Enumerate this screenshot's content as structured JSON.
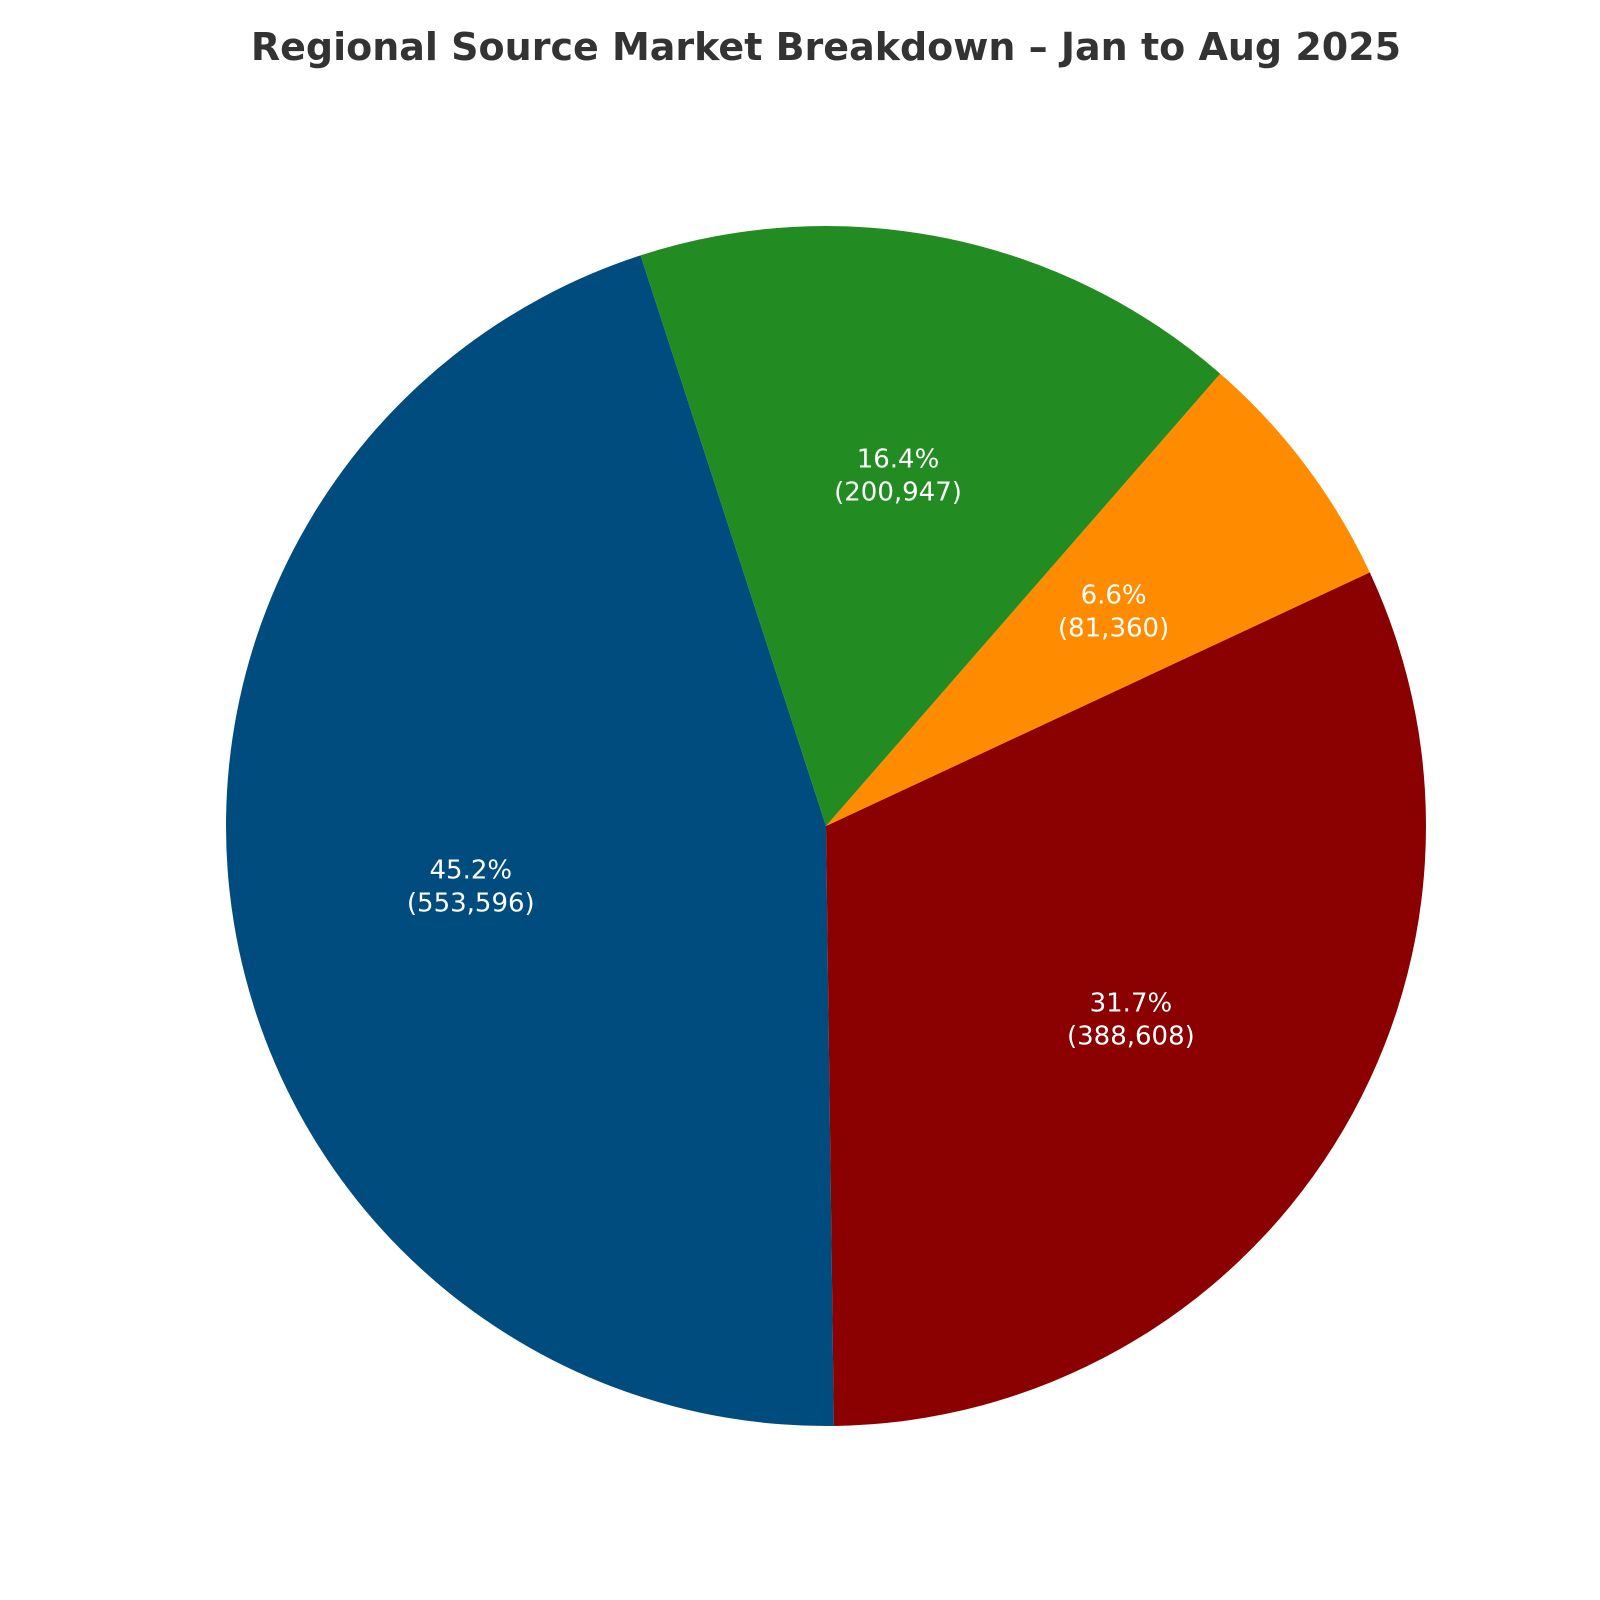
{
  "chart_data": {
    "type": "pie",
    "title": "Regional Source Market Breakdown – Jan to Aug 2025",
    "slices": [
      {
        "value": 553596,
        "percent_label": "45.2%",
        "value_label": "(553,596)",
        "color": "#004c7f"
      },
      {
        "value": 388608,
        "percent_label": "31.7%",
        "value_label": "(388,608)",
        "color": "#8b0000"
      },
      {
        "value": 81360,
        "percent_label": "6.6%",
        "value_label": "(81,360)",
        "color": "#ff8c00"
      },
      {
        "value": 200947,
        "percent_label": "16.4%",
        "value_label": "(200,947)",
        "color": "#228b22"
      }
    ]
  }
}
